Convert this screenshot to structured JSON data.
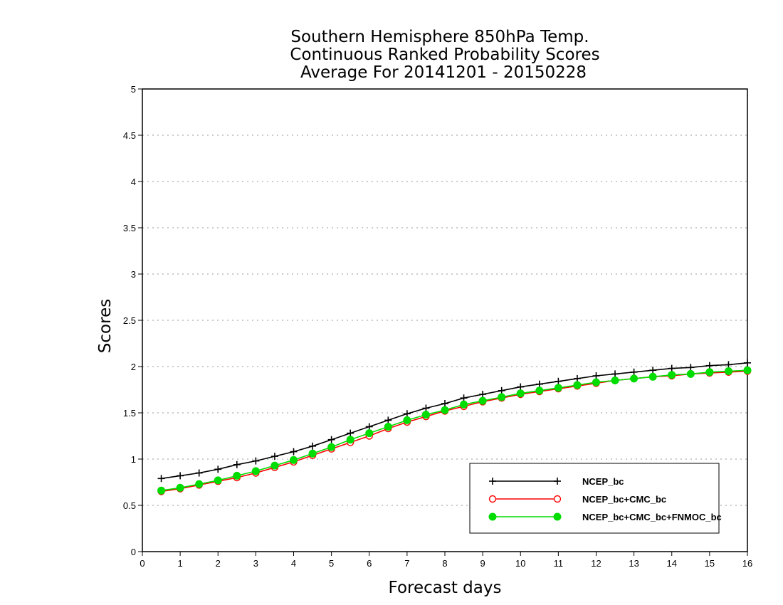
{
  "chart_data": {
    "type": "line",
    "title": [
      "Southern Hemisphere 850hPa Temp.",
      "Continuous Ranked Probability Scores",
      "Average For 20141201 - 20150228"
    ],
    "xlabel": "Forecast days",
    "ylabel": "Scores",
    "xlim": [
      0,
      16
    ],
    "ylim": [
      0,
      5
    ],
    "xticks": [
      "0",
      "1",
      "2",
      "3",
      "4",
      "5",
      "6",
      "7",
      "8",
      "9",
      "10",
      "11",
      "12",
      "13",
      "14",
      "15",
      "16"
    ],
    "yticks": [
      "0",
      "0.5",
      "1",
      "1.5",
      "2",
      "2.5",
      "3",
      "3.5",
      "4",
      "4.5",
      "5"
    ],
    "grid": "horizontal dotted",
    "legend_position": "bottom-right",
    "x": [
      0.5,
      1,
      1.5,
      2,
      2.5,
      3,
      3.5,
      4,
      4.5,
      5,
      5.5,
      6,
      6.5,
      7,
      7.5,
      8,
      8.5,
      9,
      9.5,
      10,
      10.5,
      11,
      11.5,
      12,
      12.5,
      13,
      13.5,
      14,
      14.5,
      15,
      15.5,
      16
    ],
    "series": [
      {
        "name": "NCEP_bc",
        "color": "#000000",
        "marker": "plus",
        "values": [
          0.79,
          0.82,
          0.85,
          0.89,
          0.94,
          0.98,
          1.03,
          1.08,
          1.14,
          1.21,
          1.28,
          1.35,
          1.42,
          1.49,
          1.55,
          1.6,
          1.66,
          1.7,
          1.74,
          1.78,
          1.81,
          1.84,
          1.87,
          1.9,
          1.92,
          1.94,
          1.96,
          1.98,
          1.99,
          2.01,
          2.02,
          2.04
        ]
      },
      {
        "name": "NCEP_bc+CMC_bc",
        "color": "#ff0000",
        "marker": "open-circle",
        "values": [
          0.65,
          0.68,
          0.72,
          0.76,
          0.8,
          0.85,
          0.91,
          0.97,
          1.04,
          1.11,
          1.18,
          1.25,
          1.33,
          1.4,
          1.46,
          1.52,
          1.57,
          1.62,
          1.66,
          1.7,
          1.73,
          1.76,
          1.79,
          1.82,
          1.85,
          1.87,
          1.89,
          1.9,
          1.92,
          1.93,
          1.94,
          1.95
        ]
      },
      {
        "name": "NCEP_bc+CMC_bc+FNMOC_bc",
        "color": "#00dd00",
        "marker": "filled-circle",
        "values": [
          0.66,
          0.69,
          0.73,
          0.77,
          0.82,
          0.87,
          0.93,
          0.99,
          1.06,
          1.13,
          1.21,
          1.28,
          1.35,
          1.42,
          1.48,
          1.53,
          1.59,
          1.63,
          1.67,
          1.71,
          1.74,
          1.77,
          1.8,
          1.83,
          1.85,
          1.87,
          1.89,
          1.91,
          1.92,
          1.94,
          1.95,
          1.96
        ]
      }
    ]
  }
}
